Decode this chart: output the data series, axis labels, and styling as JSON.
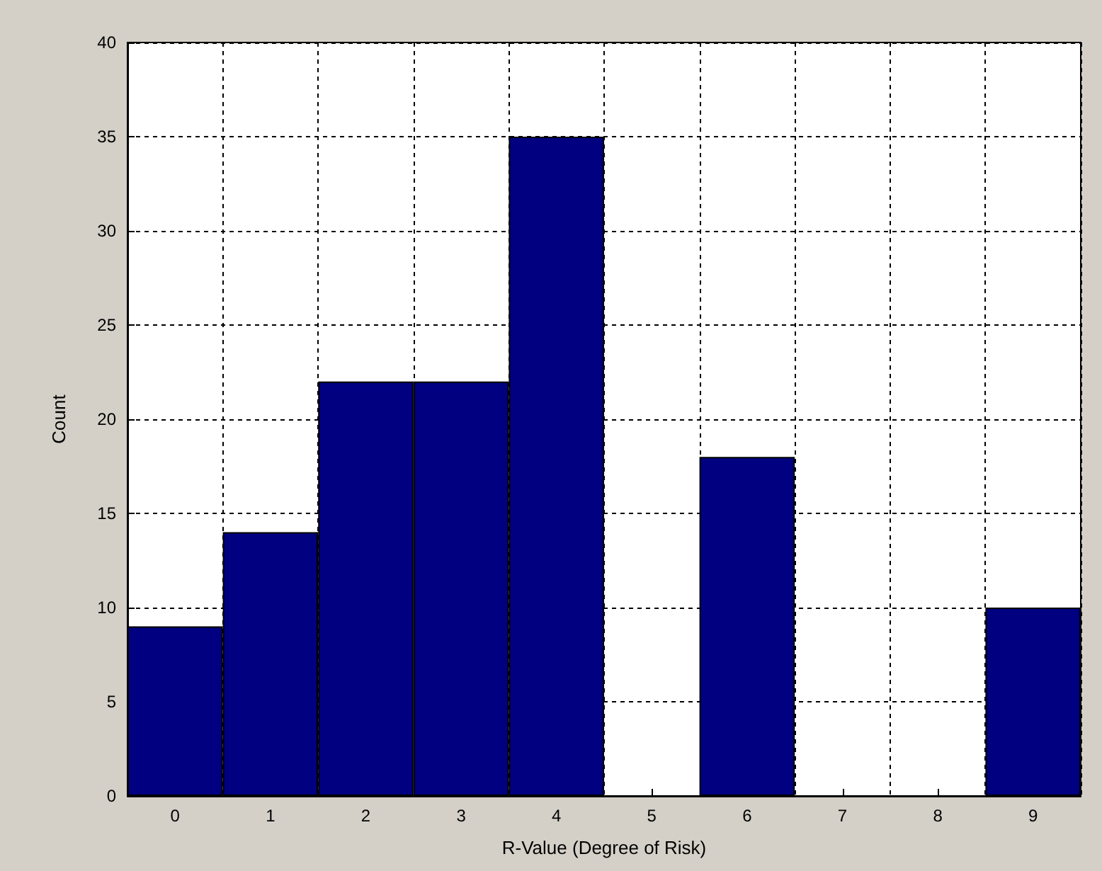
{
  "chart_data": {
    "type": "bar",
    "xlabel": "R-Value (Degree of Risk)",
    "ylabel": "Count",
    "categories": [
      "0",
      "1",
      "2",
      "3",
      "4",
      "5",
      "6",
      "7",
      "8",
      "9"
    ],
    "values": [
      9,
      14,
      22,
      22,
      35,
      0,
      18,
      0,
      0,
      10
    ],
    "color": "#000080",
    "ylim": [
      0,
      40
    ],
    "yticks": [
      0,
      5,
      10,
      15,
      20,
      25,
      30,
      35,
      40
    ],
    "grid": true
  }
}
